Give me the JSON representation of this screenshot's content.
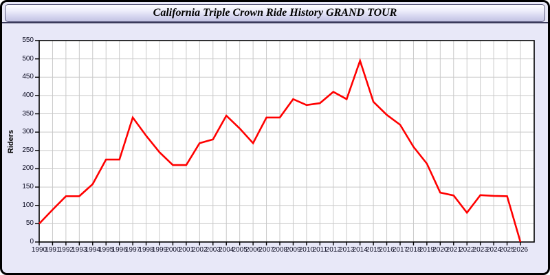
{
  "header": {
    "title": "California Triple Crown Ride History GRAND TOUR"
  },
  "colors": {
    "page_background": "#e8e8f8",
    "plot_background": "#ffffff",
    "gridline": "#c9c9c9",
    "axis": "#000000",
    "line": "#ff0000",
    "tick_label": "#0a0a20"
  },
  "chart_data": {
    "type": "line",
    "title": "California Triple Crown Ride History GRAND TOUR",
    "xlabel": "",
    "ylabel": "Riders",
    "ylim": [
      0,
      550
    ],
    "ytick_interval": 50,
    "grid": true,
    "legend": "none",
    "x": [
      1990,
      1991,
      1992,
      1993,
      1994,
      1995,
      1996,
      1997,
      1998,
      1999,
      2000,
      2001,
      2002,
      2003,
      2004,
      2005,
      2006,
      2007,
      2008,
      2009,
      2010,
      2011,
      2012,
      2013,
      2014,
      2015,
      2016,
      2017,
      2018,
      2019,
      2020,
      2021,
      2022,
      2023,
      2024,
      2025,
      2026
    ],
    "series": [
      {
        "name": "Riders",
        "color": "#ff0000",
        "values": [
          50,
          88,
          125,
          125,
          158,
          225,
          225,
          340,
          290,
          245,
          210,
          210,
          270,
          280,
          345,
          310,
          270,
          340,
          340,
          390,
          374,
          379,
          410,
          390,
          495,
          383,
          347,
          320,
          260,
          214,
          135,
          127,
          80,
          128,
          126,
          125,
          0
        ]
      }
    ]
  }
}
